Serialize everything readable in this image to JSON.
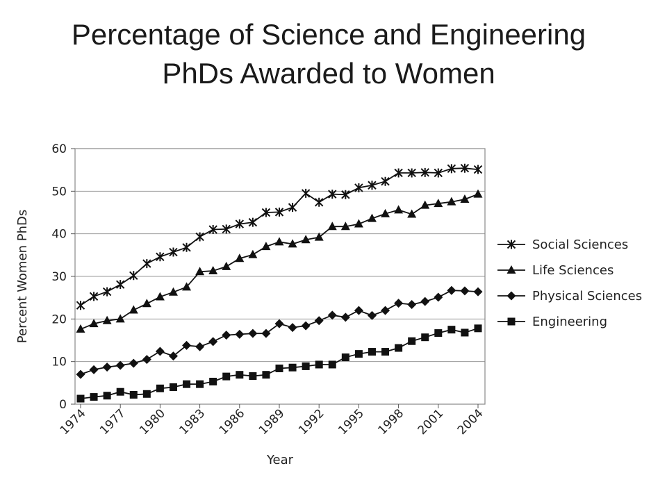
{
  "title": {
    "line1": "Percentage of Science and Engineering",
    "line2": "PhDs Awarded to Women"
  },
  "chart_data": {
    "type": "line",
    "title": "Percentage of Science and Engineering PhDs Awarded to Women",
    "xlabel": "Year",
    "ylabel": "Percent Women PhDs",
    "xlim": [
      1974,
      2004
    ],
    "ylim": [
      0,
      60
    ],
    "x_ticks": [
      "1974",
      "1977",
      "1980",
      "1983",
      "1986",
      "1989",
      "1992",
      "1995",
      "1998",
      "2001",
      "2004"
    ],
    "y_ticks": [
      "0",
      "10",
      "20",
      "30",
      "40",
      "50",
      "60"
    ],
    "grid": "horizontal",
    "legend_position": "right",
    "x": [
      1974,
      1975,
      1976,
      1977,
      1978,
      1979,
      1980,
      1981,
      1982,
      1983,
      1984,
      1985,
      1986,
      1987,
      1988,
      1989,
      1990,
      1991,
      1992,
      1993,
      1994,
      1995,
      1996,
      1997,
      1998,
      1999,
      2000,
      2001,
      2002,
      2003,
      2004
    ],
    "series": [
      {
        "name": "Social Sciences",
        "marker": "asterisk",
        "values": [
          23.2,
          25.3,
          26.4,
          28.1,
          30.2,
          33.0,
          34.6,
          35.7,
          36.8,
          39.3,
          41.0,
          41.1,
          42.3,
          42.7,
          45.0,
          45.1,
          46.2,
          49.5,
          47.4,
          49.3,
          49.2,
          50.8,
          51.4,
          52.3,
          54.3,
          54.3,
          54.4,
          54.3,
          55.3,
          55.4,
          55.1
        ]
      },
      {
        "name": "Life Sciences",
        "marker": "triangle",
        "values": [
          17.6,
          18.9,
          19.6,
          20.0,
          22.1,
          23.6,
          25.2,
          26.3,
          27.5,
          31.1,
          31.3,
          32.3,
          34.2,
          35.1,
          37.0,
          38.1,
          37.6,
          38.6,
          39.2,
          41.7,
          41.7,
          42.3,
          43.6,
          44.7,
          45.6,
          44.6,
          46.7,
          47.1,
          47.5,
          48.1,
          49.3
        ]
      },
      {
        "name": "Physical Sciences",
        "marker": "diamond",
        "values": [
          7.0,
          8.1,
          8.7,
          9.1,
          9.6,
          10.5,
          12.4,
          11.3,
          13.8,
          13.5,
          14.7,
          16.2,
          16.4,
          16.6,
          16.6,
          18.9,
          18.0,
          18.4,
          19.6,
          20.9,
          20.4,
          22.0,
          20.8,
          22.0,
          23.7,
          23.4,
          24.1,
          25.1,
          26.7,
          26.6,
          26.4
        ]
      },
      {
        "name": "Engineering",
        "marker": "square",
        "values": [
          1.3,
          1.7,
          2.0,
          2.9,
          2.2,
          2.4,
          3.7,
          4.0,
          4.7,
          4.7,
          5.3,
          6.5,
          6.9,
          6.6,
          6.9,
          8.4,
          8.6,
          8.9,
          9.3,
          9.3,
          11.0,
          11.8,
          12.3,
          12.3,
          13.2,
          14.8,
          15.7,
          16.7,
          17.5,
          16.8,
          17.8
        ]
      }
    ]
  }
}
